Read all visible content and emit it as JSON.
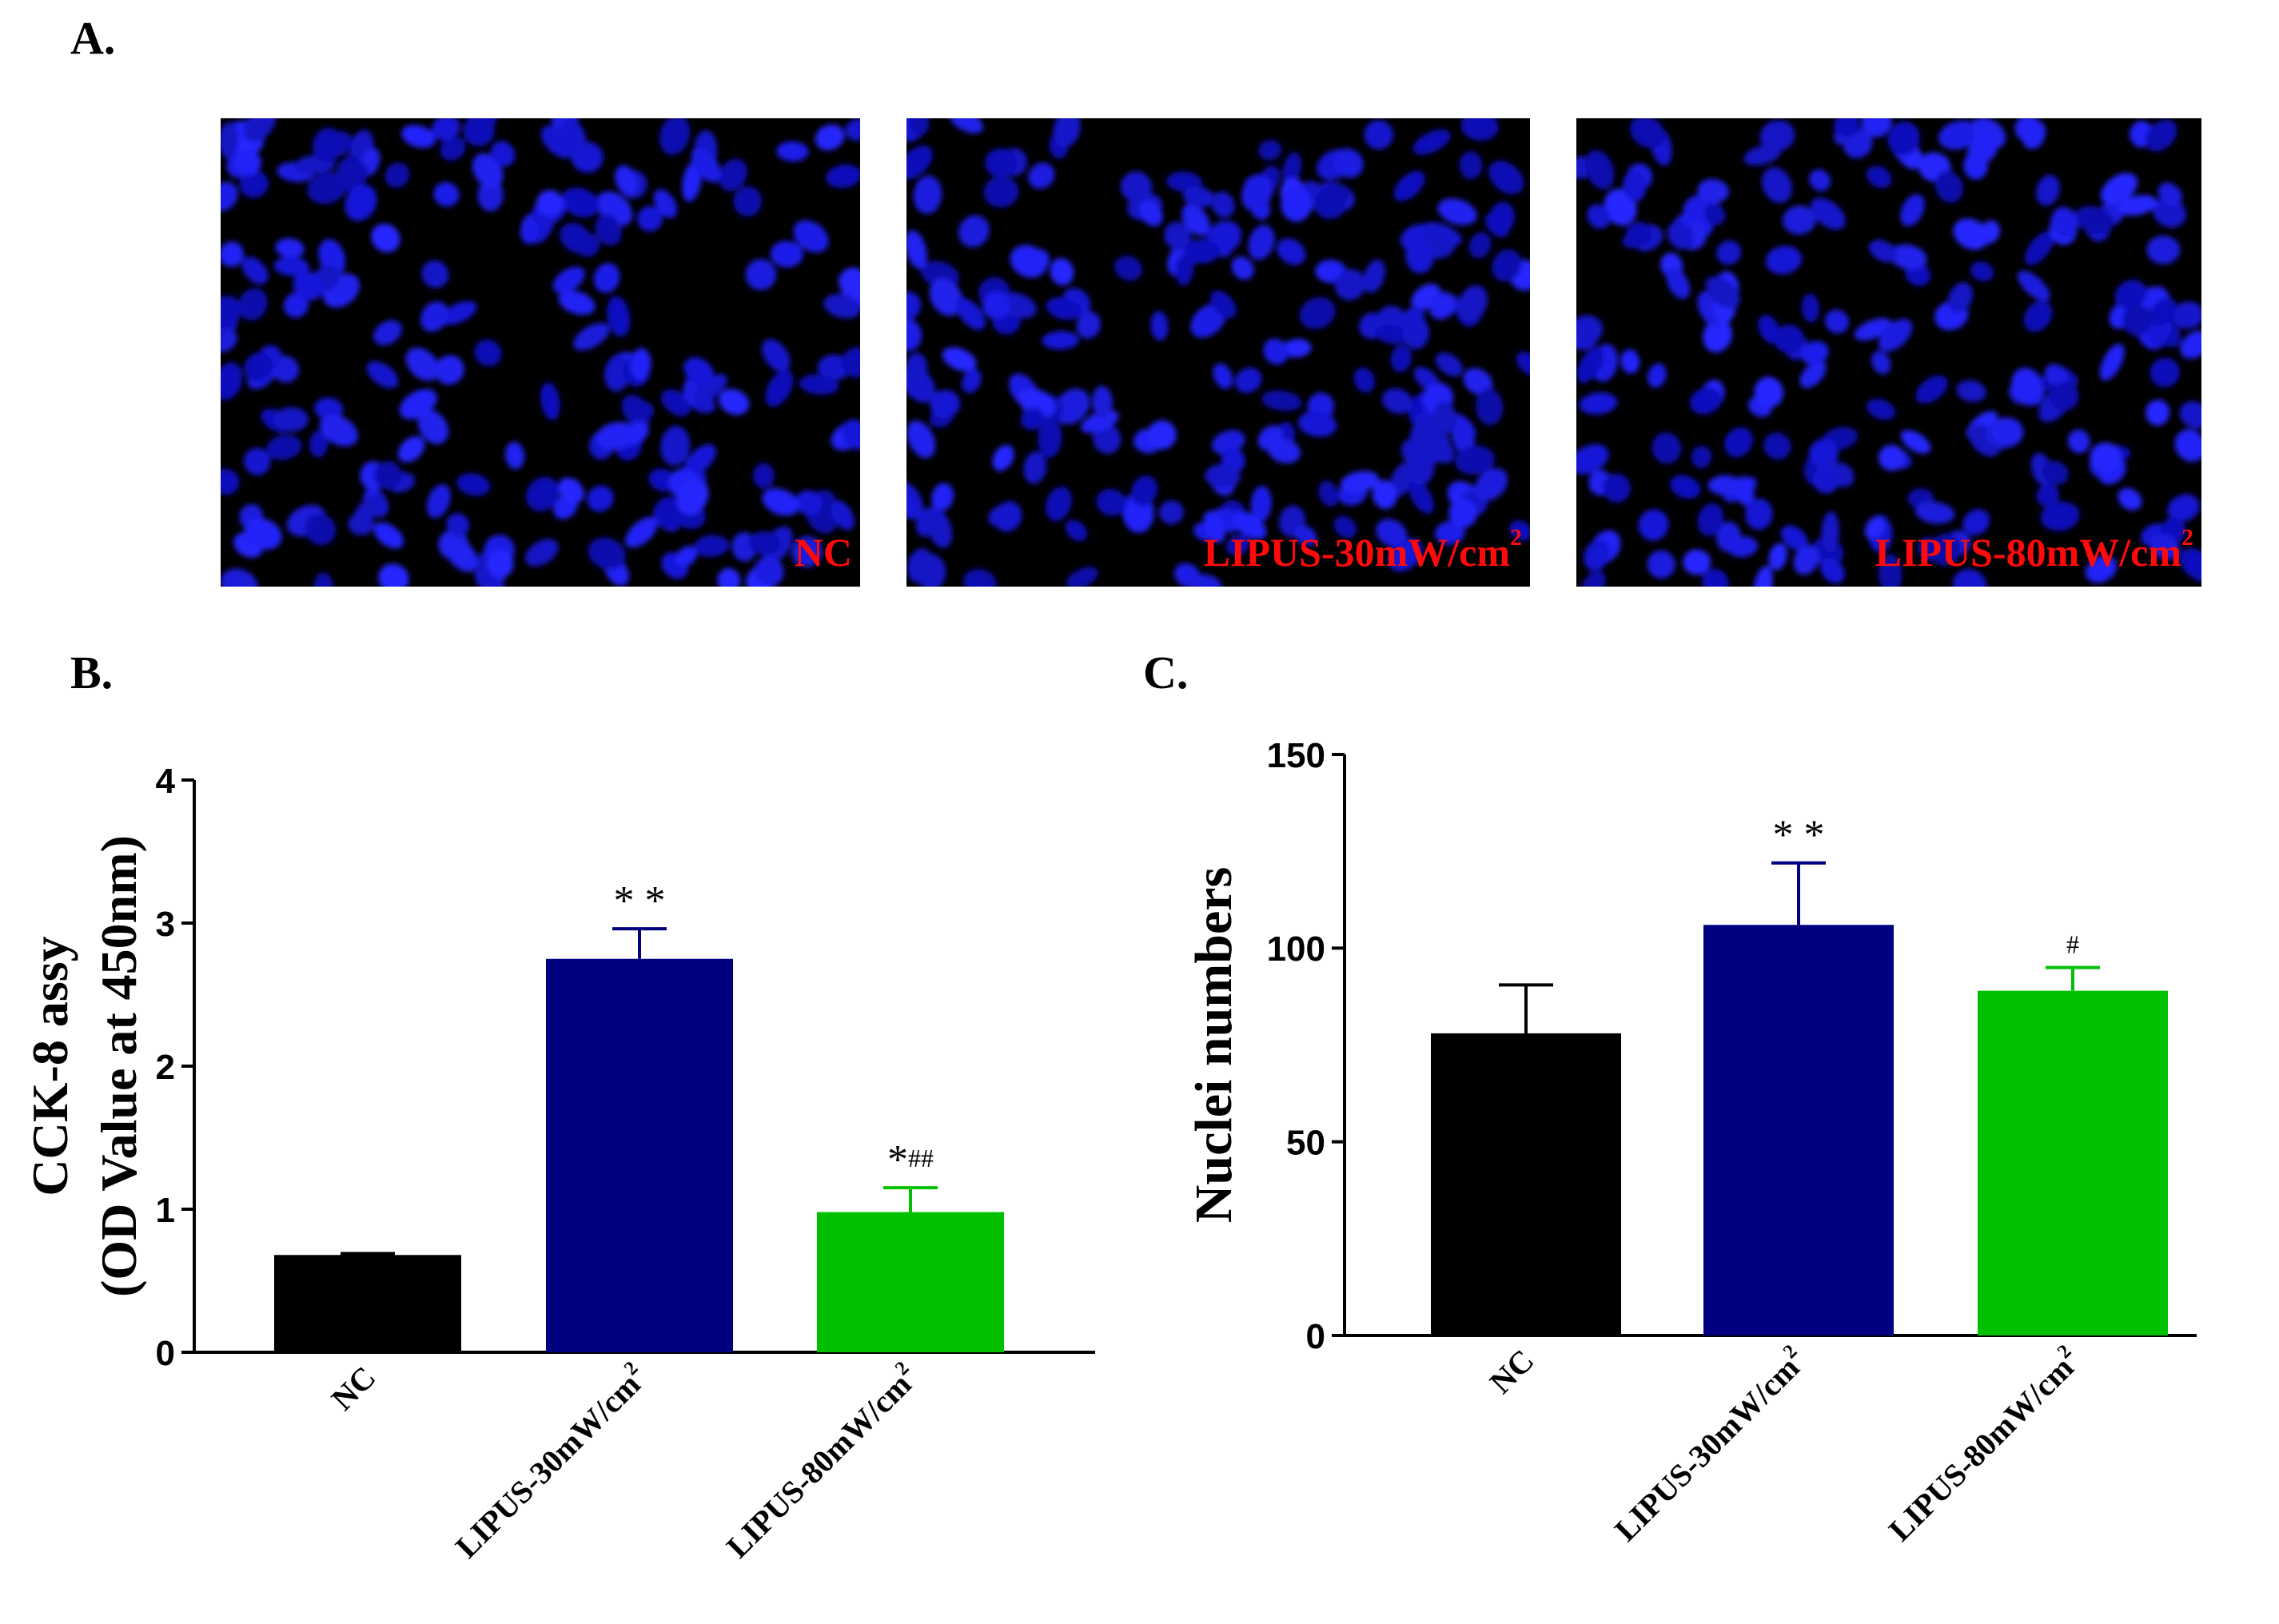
{
  "panels": {
    "a_label": "A.",
    "b_label": "B.",
    "c_label": "C."
  },
  "micrographs": [
    {
      "label": "NC",
      "superscript": ""
    },
    {
      "label": "LIPUS-30mW/cm",
      "superscript": "2"
    },
    {
      "label": "LIPUS-80mW/cm",
      "superscript": "2"
    }
  ],
  "colors": {
    "nc": "#000000",
    "lipus30": "#000080",
    "lipus80": "#00c000",
    "micro_label": "#ff0a0a",
    "nuclei": "#1a1aff",
    "micro_background": "#000000"
  },
  "chart_data": [
    {
      "type": "bar",
      "panel": "B.",
      "categories": [
        "NC",
        "LIPUS-30mW/cm2",
        "LIPUS-80mW/cm2"
      ],
      "category_labels": [
        {
          "text": "NC",
          "superscript": ""
        },
        {
          "text": "LIPUS-30mW/cm",
          "superscript": "2"
        },
        {
          "text": "LIPUS-80mW/cm",
          "superscript": "2"
        }
      ],
      "values": [
        0.68,
        2.75,
        0.98
      ],
      "errors": [
        0.01,
        0.21,
        0.17
      ],
      "annotations": [
        "",
        "**",
        "*##"
      ],
      "ylabel_line1": "CCK-8 assy",
      "ylabel_line2": "(OD Value at 450nm)",
      "ylim": [
        0,
        4
      ],
      "yticks": [
        0,
        1,
        2,
        3,
        4
      ],
      "ytick_labels": [
        "0",
        "1",
        "2",
        "3",
        "4"
      ]
    },
    {
      "type": "bar",
      "panel": "C.",
      "categories": [
        "NC",
        "LIPUS-30mW/cm2",
        "LIPUS-80mW/cm2"
      ],
      "category_labels": [
        {
          "text": "NC",
          "superscript": ""
        },
        {
          "text": "LIPUS-30mW/cm",
          "superscript": "2"
        },
        {
          "text": "LIPUS-80mW/cm",
          "superscript": "2"
        }
      ],
      "values": [
        78,
        106,
        89
      ],
      "errors": [
        12.5,
        16,
        6
      ],
      "annotations": [
        "",
        "**",
        "#"
      ],
      "ylabel_line1": "Nuclei numbers",
      "ylabel_line2": "",
      "ylim": [
        0,
        150
      ],
      "yticks": [
        0,
        50,
        100,
        150
      ],
      "ytick_labels": [
        "0",
        "50",
        "100",
        "150"
      ]
    }
  ]
}
